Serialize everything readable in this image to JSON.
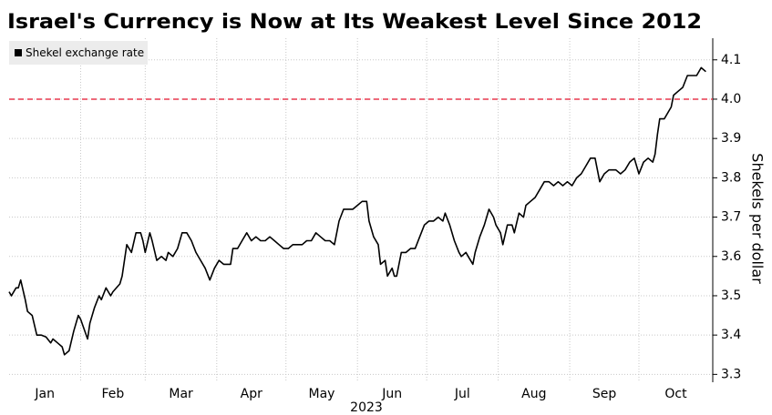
{
  "chart_data": {
    "type": "line",
    "title": "Israel's Currency is Now at Its Weakest Level Since 2012",
    "x_label": "2023",
    "y_label": "Shekels per dollar",
    "x": [
      1,
      2,
      4,
      5,
      6,
      8,
      9,
      11,
      13,
      15,
      17,
      19,
      20,
      22,
      24,
      25,
      27,
      29,
      31,
      32,
      35,
      36,
      38,
      40,
      41,
      43,
      45,
      46,
      49,
      50,
      52,
      54,
      56,
      58,
      59,
      60,
      62,
      63,
      65,
      67,
      69,
      70,
      72,
      74,
      76,
      78,
      80,
      82,
      84,
      86,
      88,
      90,
      92,
      94,
      95,
      97,
      98,
      100,
      102,
      104,
      106,
      108,
      110,
      112,
      114,
      116,
      118,
      120,
      122,
      124,
      126,
      128,
      130,
      132,
      134,
      136,
      138,
      140,
      142,
      144,
      146,
      148,
      150,
      152,
      154,
      156,
      157,
      159,
      161,
      162,
      164,
      165,
      167,
      168,
      169,
      171,
      173,
      175,
      177,
      179,
      181,
      183,
      185,
      187,
      189,
      190,
      192,
      194,
      196,
      197,
      199,
      200,
      202,
      203,
      205,
      207,
      209,
      211,
      212,
      214,
      215,
      217,
      219,
      220,
      222,
      224,
      225,
      227,
      229,
      231,
      233,
      235,
      237,
      239,
      241,
      243,
      245,
      247,
      249,
      251,
      253,
      255,
      257,
      259,
      261,
      262,
      264,
      266,
      268,
      270,
      272,
      274,
      276,
      278,
      280,
      281,
      282,
      283,
      285,
      287,
      288,
      289,
      291,
      293,
      295,
      297,
      299,
      301,
      303
    ],
    "series": [
      {
        "name": "Shekel exchange rate",
        "color": "#000000",
        "values": [
          3.51,
          3.5,
          3.52,
          3.52,
          3.54,
          3.49,
          3.46,
          3.45,
          3.4,
          3.4,
          3.395,
          3.38,
          3.39,
          3.38,
          3.37,
          3.35,
          3.36,
          3.41,
          3.45,
          3.44,
          3.39,
          3.43,
          3.47,
          3.5,
          3.49,
          3.52,
          3.5,
          3.51,
          3.53,
          3.55,
          3.63,
          3.61,
          3.66,
          3.66,
          3.64,
          3.61,
          3.66,
          3.64,
          3.59,
          3.6,
          3.59,
          3.61,
          3.6,
          3.62,
          3.66,
          3.66,
          3.64,
          3.61,
          3.59,
          3.57,
          3.54,
          3.57,
          3.59,
          3.58,
          3.58,
          3.58,
          3.62,
          3.62,
          3.64,
          3.66,
          3.64,
          3.65,
          3.64,
          3.64,
          3.65,
          3.64,
          3.63,
          3.62,
          3.62,
          3.63,
          3.63,
          3.63,
          3.64,
          3.64,
          3.66,
          3.65,
          3.64,
          3.64,
          3.63,
          3.69,
          3.72,
          3.72,
          3.72,
          3.73,
          3.74,
          3.74,
          3.69,
          3.65,
          3.63,
          3.58,
          3.59,
          3.55,
          3.57,
          3.55,
          3.55,
          3.61,
          3.61,
          3.62,
          3.62,
          3.65,
          3.68,
          3.69,
          3.69,
          3.7,
          3.69,
          3.71,
          3.68,
          3.64,
          3.61,
          3.6,
          3.61,
          3.6,
          3.58,
          3.61,
          3.65,
          3.68,
          3.72,
          3.7,
          3.68,
          3.66,
          3.63,
          3.68,
          3.68,
          3.66,
          3.71,
          3.7,
          3.73,
          3.74,
          3.75,
          3.77,
          3.79,
          3.79,
          3.78,
          3.79,
          3.78,
          3.79,
          3.78,
          3.8,
          3.81,
          3.83,
          3.85,
          3.85,
          3.79,
          3.81,
          3.82,
          3.82,
          3.82,
          3.81,
          3.82,
          3.84,
          3.85,
          3.81,
          3.84,
          3.85,
          3.84,
          3.86,
          3.91,
          3.95,
          3.95,
          3.97,
          3.98,
          4.01,
          4.02,
          4.03,
          4.06,
          4.06,
          4.06,
          4.08,
          4.07
        ]
      }
    ],
    "xlim": [
      1,
      306
    ],
    "xticks": [
      {
        "value": 1,
        "label": "Jan"
      },
      {
        "value": 32,
        "label": "Feb"
      },
      {
        "value": 60,
        "label": "Mar"
      },
      {
        "value": 91,
        "label": "Apr"
      },
      {
        "value": 121,
        "label": "May"
      },
      {
        "value": 152,
        "label": "Jun"
      },
      {
        "value": 182,
        "label": "Jul"
      },
      {
        "value": 213,
        "label": "Aug"
      },
      {
        "value": 244,
        "label": "Sep"
      },
      {
        "value": 274,
        "label": "Oct"
      }
    ],
    "ylim": [
      3.28,
      4.155
    ],
    "yticks": [
      3.3,
      3.4,
      3.5,
      3.6,
      3.7,
      3.8,
      3.9,
      {
        "value": 4,
        "label": "4.0"
      },
      4.1
    ],
    "grid": true,
    "reference_line": {
      "value": 4,
      "color": "#e8384f"
    },
    "legend": "top-left"
  }
}
